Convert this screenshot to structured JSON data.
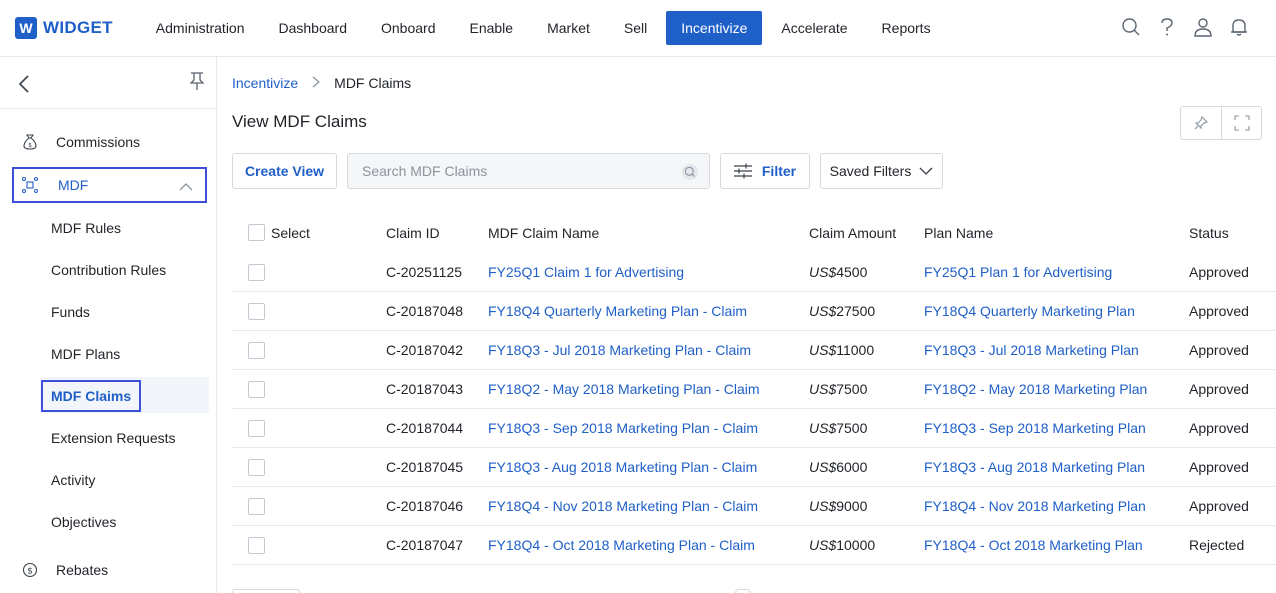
{
  "app": {
    "logo_letter": "W",
    "logo_text": "WIDGET"
  },
  "nav": {
    "items": [
      {
        "label": "Administration"
      },
      {
        "label": "Dashboard"
      },
      {
        "label": "Onboard"
      },
      {
        "label": "Enable"
      },
      {
        "label": "Market"
      },
      {
        "label": "Sell"
      },
      {
        "label": "Incentivize",
        "active": true
      },
      {
        "label": "Accelerate"
      },
      {
        "label": "Reports"
      }
    ],
    "icons": [
      "search-icon",
      "help-icon",
      "user-icon",
      "notification-bell-icon"
    ]
  },
  "sidebar": {
    "commissions": "Commissions",
    "mdf": "MDF",
    "sub_items": [
      {
        "label": "MDF Rules"
      },
      {
        "label": "Contribution Rules"
      },
      {
        "label": "Funds"
      },
      {
        "label": "MDF Plans"
      },
      {
        "label": "MDF Claims",
        "active": true
      },
      {
        "label": "Extension Requests"
      },
      {
        "label": "Activity"
      },
      {
        "label": "Objectives"
      }
    ],
    "rebates": "Rebates"
  },
  "breadcrumb": {
    "parent": "Incentivize",
    "current": "MDF Claims"
  },
  "page": {
    "title": "View MDF Claims"
  },
  "toolbar": {
    "create_view": "Create View",
    "search_placeholder": "Search MDF Claims",
    "filter": "Filter",
    "saved_filters": "Saved Filters"
  },
  "table": {
    "headers": {
      "select": "Select",
      "claim_id": "Claim ID",
      "claim_name": "MDF Claim Name",
      "amount": "Claim Amount",
      "plan": "Plan Name",
      "status": "Status"
    },
    "rows": [
      {
        "id": "C-20251125",
        "name": "FY25Q1 Claim 1 for Advertising",
        "currency": "US$",
        "amount": "4500",
        "plan": "FY25Q1 Plan 1 for Advertising",
        "status": "Approved"
      },
      {
        "id": "C-20187048",
        "name": "FY18Q4 Quarterly Marketing Plan - Claim",
        "currency": "US$",
        "amount": "27500",
        "plan": "FY18Q4 Quarterly Marketing Plan",
        "status": "Approved"
      },
      {
        "id": "C-20187042",
        "name": "FY18Q3 - Jul 2018 Marketing Plan - Claim",
        "currency": "US$",
        "amount": "11000",
        "plan": "FY18Q3 - Jul 2018 Marketing Plan",
        "status": "Approved"
      },
      {
        "id": "C-20187043",
        "name": "FY18Q2 - May 2018 Marketing Plan - Claim",
        "currency": "US$",
        "amount": "7500",
        "plan": "FY18Q2 - May 2018 Marketing Plan",
        "status": "Approved"
      },
      {
        "id": "C-20187044",
        "name": "FY18Q3 - Sep 2018 Marketing Plan - Claim",
        "currency": "US$",
        "amount": "7500",
        "plan": "FY18Q3 - Sep 2018 Marketing Plan",
        "status": "Approved"
      },
      {
        "id": "C-20187045",
        "name": "FY18Q3 - Aug 2018 Marketing Plan - Claim",
        "currency": "US$",
        "amount": "6000",
        "plan": "FY18Q3 - Aug 2018 Marketing Plan",
        "status": "Approved"
      },
      {
        "id": "C-20187046",
        "name": "FY18Q4 - Nov 2018 Marketing Plan - Claim",
        "currency": "US$",
        "amount": "9000",
        "plan": "FY18Q4 - Nov 2018 Marketing Plan",
        "status": "Approved"
      },
      {
        "id": "C-20187047",
        "name": "FY18Q4 - Oct 2018 Marketing Plan - Claim",
        "currency": "US$",
        "amount": "10000",
        "plan": "FY18Q4 - Oct 2018 Marketing Plan",
        "status": "Rejected"
      }
    ]
  },
  "colors": {
    "primary": "#1f5fc8",
    "focus_outline": "#3d4fd6"
  }
}
